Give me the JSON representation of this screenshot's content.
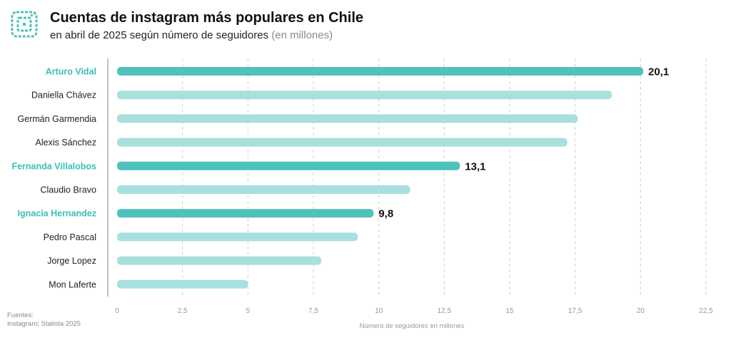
{
  "header": {
    "title": "Cuentas de instagram más populares en Chile",
    "subtitle": "en abril de 2025 según número de seguidores",
    "subtitle_unit": "(en millones)"
  },
  "footer": {
    "sources_label": "Fuentes:",
    "sources_text": "Instagram; Statista 2025"
  },
  "logo": {
    "icon": "instagram-icon"
  },
  "colors": {
    "highlight": "#4ec2bb",
    "normal": "#a8e0dd",
    "highlight_label": "#3bbdb5",
    "label": "#222222",
    "tick": "#999999",
    "grid": "#cfcfcf",
    "axis": "#9a9a9a"
  },
  "chart_data": {
    "type": "bar",
    "orientation": "horizontal",
    "title": "Cuentas de instagram más populares en Chile",
    "subtitle": "en abril de 2025 según número de seguidores (en millones)",
    "xlabel": "Número de seguidores en millones",
    "ylabel": "",
    "xlim": [
      0,
      22.5
    ],
    "xticks": [
      "0",
      "2,5",
      "5",
      "7,5",
      "10",
      "12,5",
      "15",
      "17,5",
      "20",
      "22,5"
    ],
    "grid": true,
    "categories": [
      "Arturo Vidal",
      "Daniella Chávez",
      "Germán Garmendia",
      "Alexis Sánchez",
      "Fernanda Villalobos",
      "Claudio Bravo",
      "Ignacia Hernandez",
      "Pedro Pascal",
      "Jorge Lopez",
      "Mon Laferte"
    ],
    "values": [
      20.1,
      18.9,
      17.6,
      17.2,
      13.1,
      11.2,
      9.8,
      9.2,
      7.8,
      5.0
    ],
    "highlighted": [
      true,
      false,
      false,
      false,
      true,
      false,
      true,
      false,
      false,
      false
    ],
    "data_labels": [
      "20,1",
      "",
      "",
      "",
      "13,1",
      "",
      "9,8",
      "",
      "",
      ""
    ]
  }
}
